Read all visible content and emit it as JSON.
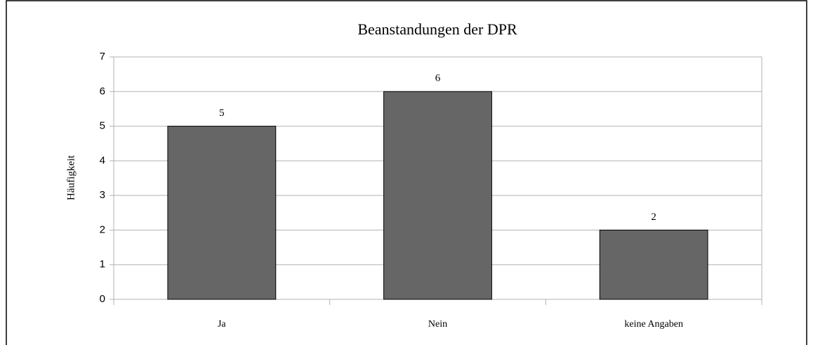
{
  "chart_data": {
    "type": "bar",
    "title": "Beanstandungen der DPR",
    "ylabel": "Häufigkeit",
    "categories": [
      "Ja",
      "Nein",
      "keine Angaben"
    ],
    "values": [
      5,
      6,
      2
    ],
    "color": "#666666",
    "ylim": [
      0,
      7
    ],
    "yticks": [
      0,
      1,
      2,
      3,
      4,
      5,
      6,
      7
    ],
    "grid": true
  }
}
